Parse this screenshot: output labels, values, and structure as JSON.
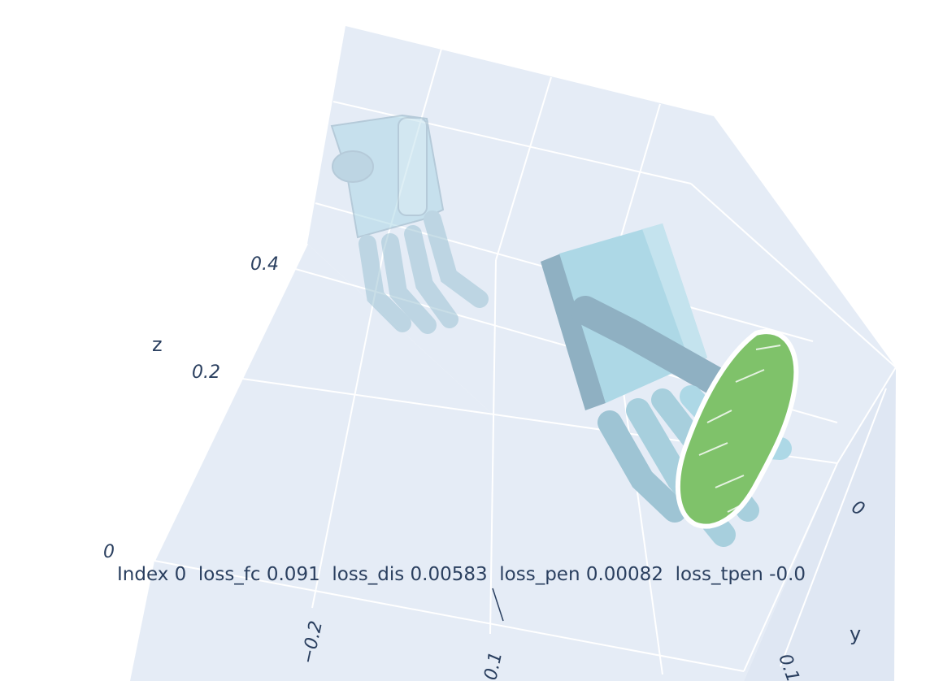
{
  "chart_data": {
    "type": "scatter3d",
    "title": "Index 0  loss_fc 0.091  loss_dis 0.00583  loss_pen 0.00082  loss_tpen -0.0",
    "title_parts": {
      "index": 0,
      "loss_fc": 0.091,
      "loss_dis": 0.00583,
      "loss_pen": 0.00082,
      "loss_tpen": -0.0
    },
    "axes": {
      "x": {
        "label": "",
        "tick_labels": [
          "−0.2",
          "0.1"
        ]
      },
      "y": {
        "label": "y",
        "tick_labels": [
          "0",
          "0.1"
        ]
      },
      "z": {
        "label": "z",
        "tick_labels": [
          "0",
          "0.2",
          "0.4"
        ]
      }
    },
    "grid": true,
    "series": [
      {
        "name": "initial hand pose",
        "kind": "mesh",
        "opacity": 0.5
      },
      {
        "name": "optimized hand pose",
        "kind": "mesh",
        "opacity": 1.0
      },
      {
        "name": "object point cloud",
        "kind": "points",
        "opacity": 1.0
      }
    ],
    "colors": {
      "scene_bg": "#e5ecf6",
      "grid": "#ffffff",
      "hand": "#add8e6",
      "hand_shadow": "#8fb0c2",
      "object": "#7fc26a",
      "text": "#2a3f5f"
    }
  }
}
